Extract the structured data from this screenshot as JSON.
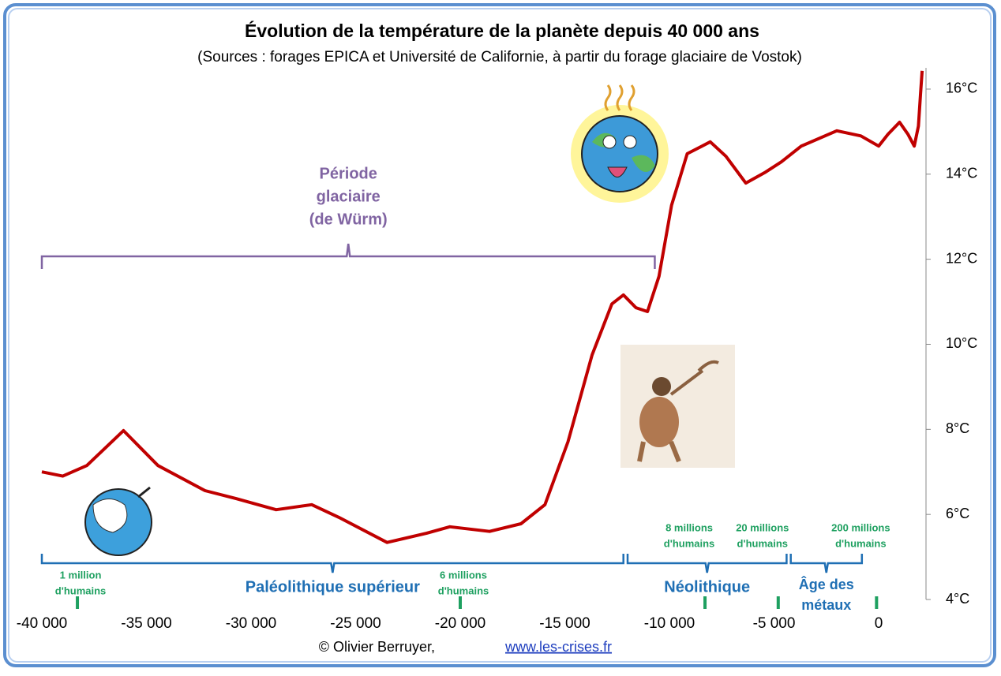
{
  "chart_data": {
    "type": "line",
    "title": "Évolution de la température de la planète depuis 40 000 ans",
    "subtitle": "(Sources : forages EPICA et Université de Californie, à partir du forage glaciaire de Vostok)",
    "x": [
      -40000,
      -39000,
      -37850,
      -36100,
      -34450,
      -32200,
      -30700,
      -28800,
      -27100,
      -25800,
      -23500,
      -21600,
      -20500,
      -18600,
      -17100,
      -15950,
      -14850,
      -13700,
      -12750,
      -12200,
      -11600,
      -11050,
      -10500,
      -9900,
      -9150,
      -8050,
      -7300,
      -6350,
      -5400,
      -4650,
      -3700,
      -2000,
      -850,
      0,
      450,
      1000,
      1400,
      1700,
      1900,
      2000,
      2080
    ],
    "series": [
      {
        "name": "Température",
        "color": "#c00000",
        "values": [
          7.0,
          6.9,
          7.15,
          7.97,
          7.15,
          6.56,
          6.37,
          6.11,
          6.23,
          5.93,
          5.34,
          5.56,
          5.71,
          5.6,
          5.78,
          6.23,
          7.71,
          9.75,
          10.95,
          11.16,
          10.86,
          10.77,
          11.6,
          13.27,
          14.48,
          14.76,
          14.42,
          13.79,
          14.05,
          14.29,
          14.66,
          15.02,
          14.9,
          14.66,
          14.94,
          15.22,
          14.94,
          14.66,
          15.13,
          15.87,
          16.43
        ]
      }
    ],
    "xlim": [
      -40000,
      2264
    ],
    "ylim": [
      4,
      16.5
    ],
    "xticks": [
      {
        "value": -40000,
        "label": "-40 000"
      },
      {
        "value": -35000,
        "label": "-35 000"
      },
      {
        "value": -30000,
        "label": "-30 000"
      },
      {
        "value": -25000,
        "label": "-25 000"
      },
      {
        "value": -20000,
        "label": "-20 000"
      },
      {
        "value": -15000,
        "label": "-15 000"
      },
      {
        "value": -10000,
        "label": "-10 000"
      },
      {
        "value": -5000,
        "label": "-5 000"
      },
      0
    ],
    "yticks": [
      {
        "value": 4,
        "label": "4°C"
      },
      {
        "value": 6,
        "label": "6°C"
      },
      {
        "value": 8,
        "label": "8°C"
      },
      {
        "value": 10,
        "label": "10°C"
      },
      {
        "value": 12,
        "label": "12°C"
      },
      {
        "value": 14,
        "label": "14°C"
      },
      {
        "value": 16,
        "label": "16°C"
      }
    ],
    "glacial_period": {
      "label": [
        "Période",
        "glaciaire",
        "(de Würm)"
      ],
      "start": -40000,
      "end": -10700
    },
    "periods": [
      {
        "label": [
          "Paléolithique supérieur"
        ],
        "start": -40000,
        "end": -12200
      },
      {
        "label": [
          "Néolithique"
        ],
        "start": -12000,
        "end": -4400
      },
      {
        "label": [
          "Âge des",
          "métaux"
        ],
        "start": -4200,
        "end": -800
      }
    ],
    "population": [
      {
        "at": -38300,
        "label": [
          "1 million",
          "d'humains"
        ]
      },
      {
        "at": -20000,
        "label": [
          "6 millions",
          "d'humains"
        ]
      },
      {
        "at": -8300,
        "label": [
          "8 millions",
          "d'humains"
        ]
      },
      {
        "at": -4800,
        "label": [
          "20 millions",
          "d'humains"
        ]
      },
      {
        "at": -100,
        "label": [
          "200 millions",
          "d'humains"
        ]
      }
    ],
    "credit": "© Olivier Berruyer,",
    "link": "www.les-crises.fr"
  }
}
